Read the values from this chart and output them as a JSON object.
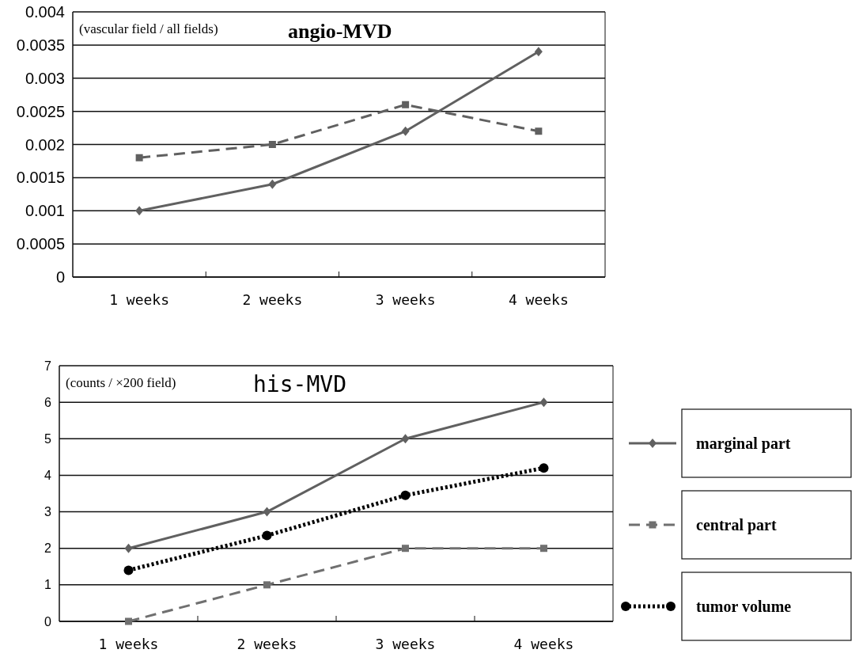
{
  "chart_data": [
    {
      "type": "line",
      "title": "angio-MVD",
      "subtitle": "(vascular field / all fields)",
      "categories": [
        "1 weeks",
        "2 weeks",
        "3 weeks",
        "4 weeks"
      ],
      "series": [
        {
          "color": "#606060",
          "values": [
            0.001,
            0.0014,
            0.0022,
            0.0034
          ],
          "marker": "diamond",
          "line_style": "solid"
        },
        {
          "color": "#606060",
          "values": [
            0.0018,
            0.002,
            0.0026,
            0.0022
          ],
          "marker": "square",
          "line_style": "dashed"
        }
      ],
      "ylim": [
        0,
        0.004
      ],
      "yticks": [
        0,
        0.0005,
        0.001,
        0.0015,
        0.002,
        0.0025,
        0.003,
        0.0035,
        0.004
      ],
      "grid": "y"
    },
    {
      "type": "line",
      "title": "his-MVD",
      "subtitle": "(counts / ×200 field)",
      "categories": [
        "1 weeks",
        "2 weeks",
        "3 weeks",
        "4 weeks"
      ],
      "series": [
        {
          "name": "marginal part",
          "color": "#606060",
          "values": [
            2,
            3,
            5,
            6
          ],
          "marker": "diamond",
          "line_style": "solid"
        },
        {
          "name": "central part",
          "color": "#707070",
          "values": [
            0,
            1,
            2,
            2
          ],
          "marker": "square",
          "line_style": "dashed"
        },
        {
          "name": "tumor volume",
          "color": "#000000",
          "values": [
            1.4,
            2.35,
            3.45,
            4.2
          ],
          "marker": "circle",
          "line_style": "dotted"
        }
      ],
      "ylim": [
        0,
        7
      ],
      "yticks": [
        0,
        1,
        2,
        3,
        4,
        5,
        6,
        7
      ],
      "grid": "y",
      "legend": "right"
    }
  ]
}
